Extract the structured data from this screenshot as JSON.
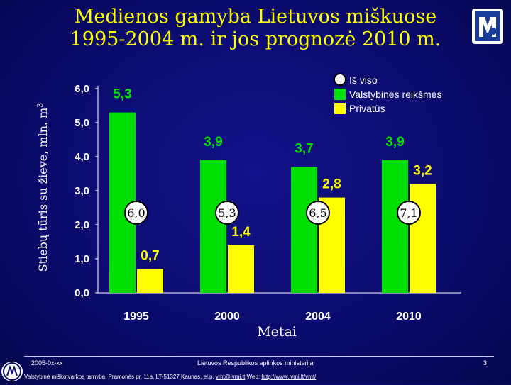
{
  "slide": {
    "title_line1": "Medienos gamyba Lietuvos miškuose",
    "title_line2": "1995-2004 m. ir jos prognozė 2010 m."
  },
  "chart_data": {
    "type": "bar",
    "categories": [
      "1995",
      "2000",
      "2004",
      "2010"
    ],
    "series": [
      {
        "name": "Valstybinės reikšmės",
        "color": "#00e000",
        "values": [
          5.3,
          3.9,
          3.7,
          3.9
        ],
        "labels": [
          "5,3",
          "3,9",
          "3,7",
          "3,9"
        ]
      },
      {
        "name": "Privatūs",
        "color": "#ffff00",
        "values": [
          0.7,
          1.4,
          2.8,
          3.2
        ],
        "labels": [
          "0,7",
          "1,4",
          "2,8",
          "3,2"
        ]
      }
    ],
    "totals": {
      "name": "Iš viso",
      "values": [
        6.0,
        5.3,
        6.5,
        7.1
      ],
      "labels": [
        "6,0",
        "5,3",
        "6,5",
        "7,1"
      ]
    },
    "legend": [
      "Iš viso",
      "Valstybinės reikšmės",
      "Privatūs"
    ],
    "legend_position": "top-right",
    "xlabel": "Metai",
    "ylabel": "Stiebų tūris su žieve, mln. m",
    "ylabel_superscript": "3",
    "ylim": [
      0,
      6
    ],
    "yticks": [
      0,
      1,
      2,
      3,
      4,
      5,
      6
    ],
    "ytick_labels": [
      "0,0",
      "1,0",
      "2,0",
      "3,0",
      "4,0",
      "5,0",
      "6,0"
    ],
    "grid": false
  },
  "footer": {
    "date": "2005-0x-xx",
    "ministry": "Lietuvos Respublikos aplinkos ministerija",
    "page": "3",
    "info": "Valstybinė miškotvarkos tarnyba, Pramonės pr. 11a, LT-51327 Kaunas, el.p. ",
    "email": "vmt@lvmi.lt",
    "web_label": " Web: ",
    "web": "http://www.lvmi.lt/vmt/"
  },
  "colors": {
    "title": "#ffff00",
    "state": "#00e000",
    "private": "#ffff00",
    "background": "#0b0b6e",
    "text": "#ffffff"
  }
}
